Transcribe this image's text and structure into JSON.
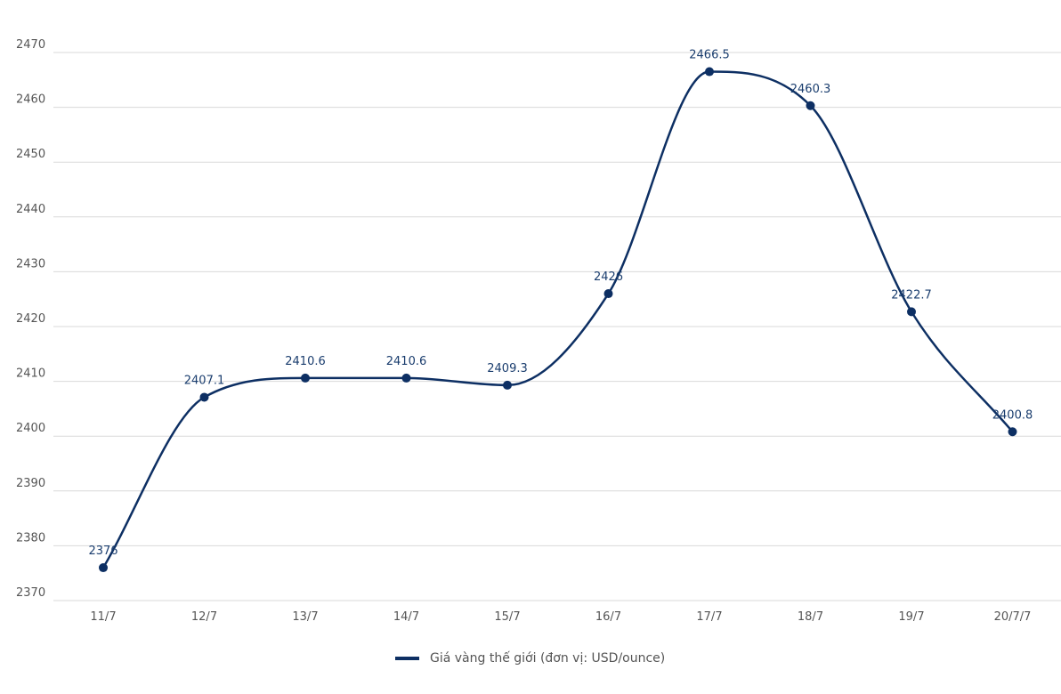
{
  "chart_data": {
    "type": "line",
    "categories": [
      "11/7",
      "12/7",
      "13/7",
      "14/7",
      "15/7",
      "16/7",
      "17/7",
      "18/7",
      "19/7",
      "20/7/7"
    ],
    "series": [
      {
        "name": "Giá vàng thế giới (đơn vị: USD/ounce)",
        "values": [
          2376,
          2407.1,
          2410.6,
          2410.6,
          2409.3,
          2426,
          2466.5,
          2460.3,
          2422.7,
          2400.8
        ],
        "labels": [
          "2376",
          "2407.1",
          "2410.6",
          "2410.6",
          "2409.3",
          "2426",
          "2466.5",
          "2460.3",
          "2422.7",
          "2400.8"
        ]
      }
    ],
    "yticks": [
      "2370",
      "2380",
      "2390",
      "2400",
      "2410",
      "2420",
      "2430",
      "2440",
      "2450",
      "2460",
      "2470"
    ],
    "ylim": [
      2370,
      2470
    ],
    "grid": true,
    "legend_position": "bottom-center",
    "colors": {
      "line": "#0d2f63"
    }
  }
}
